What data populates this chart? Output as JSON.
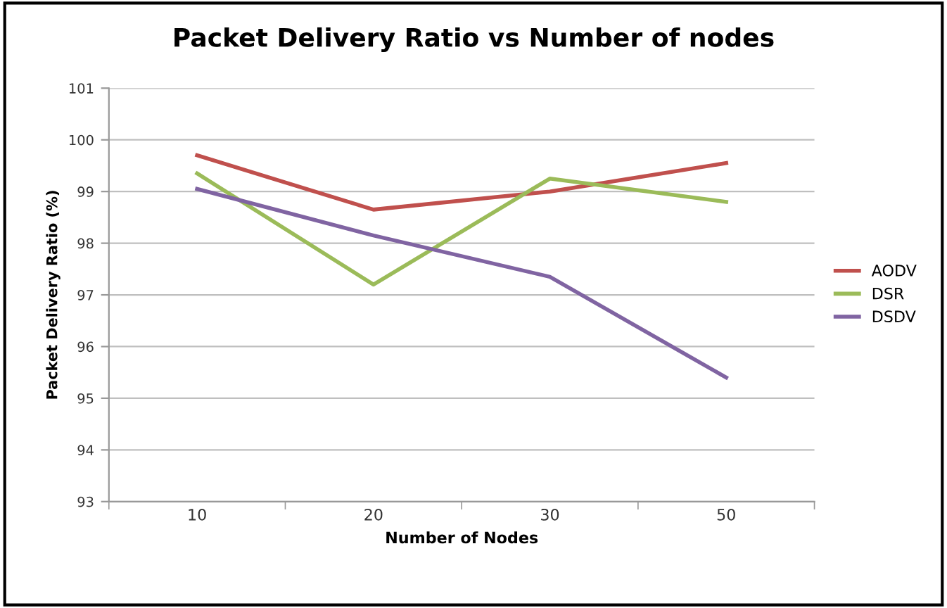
{
  "chart_data": {
    "type": "line",
    "title": "Packet Delivery Ratio vs Number of nodes",
    "xlabel": "Number of Nodes",
    "ylabel": "Packet Delivery Ratio (%)",
    "categories": [
      "10",
      "20",
      "30",
      "50"
    ],
    "series": [
      {
        "name": "AODV",
        "color": "#c0504d",
        "values": [
          99.7,
          98.65,
          99.0,
          99.55
        ]
      },
      {
        "name": "DSR",
        "color": "#9bbb59",
        "values": [
          99.35,
          97.2,
          99.25,
          98.8
        ]
      },
      {
        "name": "DSDV",
        "color": "#8064a2",
        "values": [
          99.05,
          98.15,
          97.35,
          95.4
        ]
      }
    ],
    "ylim": [
      93,
      101
    ],
    "yticks": [
      93,
      94,
      95,
      96,
      97,
      98,
      99,
      100,
      101
    ],
    "grid": "y",
    "legend": "right",
    "marker": "none",
    "line_style": "solid"
  }
}
